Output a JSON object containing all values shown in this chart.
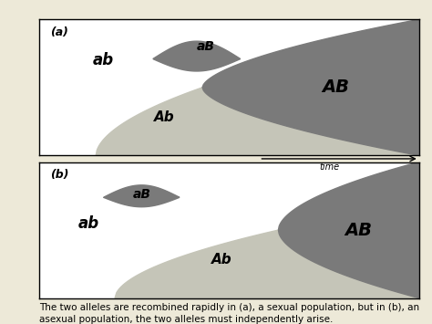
{
  "bg_color": "#ede9d8",
  "panel_bg": "#ffffff",
  "dark_gray": "#7a7a7a",
  "light_gray": "#c5c5b8",
  "text_color": "#000000",
  "caption": "The two alleles are recombined rapidly in (a), a sexual population, but in (b), an\nasexual population, the two alleles must independently arise.",
  "caption_fontsize": 7.5,
  "label_a": "(a)",
  "label_b": "(b)",
  "time_label": "time"
}
